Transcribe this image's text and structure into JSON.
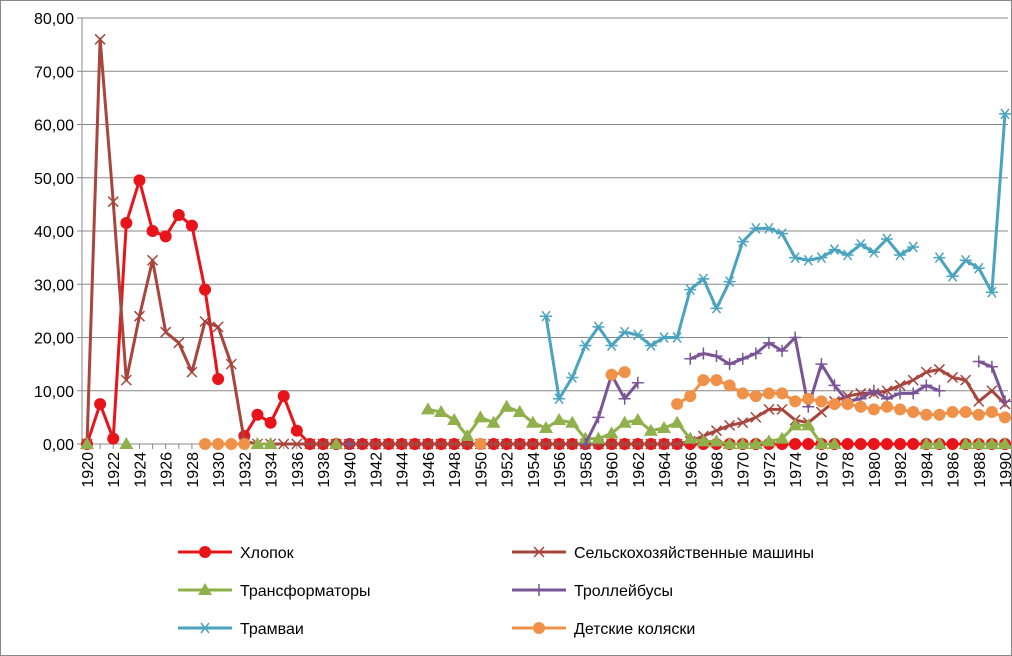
{
  "chart_data": {
    "type": "line",
    "categories": [
      "1920",
      null,
      "1922",
      null,
      "1924",
      null,
      "1926",
      null,
      "1928",
      null,
      "1930",
      null,
      "1932",
      null,
      "1934",
      null,
      "1936",
      null,
      "1938",
      null,
      "1940",
      null,
      "1942",
      null,
      "1944",
      null,
      "1946",
      null,
      "1948",
      null,
      "1950",
      null,
      "1952",
      null,
      "1954",
      null,
      "1956",
      null,
      "1958",
      null,
      "1960",
      null,
      "1962",
      null,
      "1964",
      null,
      "1966",
      null,
      "1968",
      null,
      "1970",
      null,
      "1972",
      null,
      "1974",
      null,
      "1976",
      null,
      "1978",
      null,
      "1980",
      null,
      "1982",
      null,
      "1984",
      null,
      "1986",
      null,
      "1988",
      null,
      "1990"
    ],
    "ylim": [
      0,
      80
    ],
    "yticks": [
      {
        "value": 0,
        "label": "0,00"
      },
      {
        "value": 10,
        "label": "10,00"
      },
      {
        "value": 20,
        "label": "20,00"
      },
      {
        "value": 30,
        "label": "30,00"
      },
      {
        "value": 40,
        "label": "40,00"
      },
      {
        "value": 50,
        "label": "50,00"
      },
      {
        "value": 60,
        "label": "60,00"
      },
      {
        "value": 70,
        "label": "70,00"
      },
      {
        "value": 80,
        "label": "80,00"
      }
    ],
    "grid": true,
    "legend": "bottom",
    "series": [
      {
        "name": "Хлопок",
        "color": "#e8141a",
        "marker": "circle",
        "values": [
          0,
          7.5,
          1,
          41.5,
          49.5,
          40,
          39,
          43,
          41,
          29,
          12.2,
          null,
          1.5,
          5.5,
          4,
          9,
          2.5,
          0,
          0,
          0,
          0,
          0,
          0,
          0,
          0,
          0,
          0,
          0,
          0,
          0,
          0,
          0,
          0,
          0,
          0,
          0,
          0,
          0,
          0,
          0,
          0,
          0,
          0,
          0,
          0,
          0,
          0,
          0,
          0,
          0,
          0,
          0,
          0,
          0,
          0,
          0,
          0,
          0,
          0,
          0,
          0,
          0,
          0,
          0,
          0,
          0,
          0,
          0,
          0,
          0,
          0
        ]
      },
      {
        "name": "Сельскохозяйственные машины",
        "color": "#a8453d",
        "marker": "x",
        "values": [
          0,
          76,
          45.5,
          12,
          24,
          34.5,
          21,
          19,
          13.5,
          23,
          22,
          15,
          0.5,
          0,
          0,
          0,
          0,
          0,
          0,
          0,
          0,
          0,
          0,
          0,
          0,
          0,
          0,
          0,
          0,
          0,
          0,
          0,
          0,
          0,
          0,
          0,
          0,
          0,
          0,
          0,
          0,
          0,
          0,
          0,
          0,
          0,
          0.5,
          1.5,
          2.5,
          3.5,
          4,
          5,
          6.5,
          6.5,
          4.5,
          4,
          6,
          8,
          9,
          9.5,
          9.5,
          10,
          11,
          12,
          13.5,
          14,
          12.5,
          12,
          8,
          10,
          7.5
        ]
      },
      {
        "name": "Трансформаторы",
        "color": "#8fb04a",
        "marker": "triangle",
        "values": [
          0,
          null,
          null,
          0,
          null,
          null,
          null,
          null,
          null,
          null,
          null,
          null,
          null,
          0,
          0,
          null,
          null,
          null,
          null,
          0,
          null,
          null,
          null,
          null,
          null,
          null,
          6.5,
          6,
          4.5,
          1.5,
          5,
          4,
          7,
          6,
          4,
          3,
          4.5,
          4,
          1,
          1,
          2,
          4,
          4.5,
          2.5,
          3,
          4,
          1,
          0.5,
          0.5,
          0,
          0,
          0,
          0.5,
          1,
          3.5,
          3.5,
          0,
          0,
          null,
          null,
          null,
          null,
          null,
          null,
          0,
          0,
          null,
          0,
          0,
          0,
          0
        ]
      },
      {
        "name": "Троллейбусы",
        "color": "#7a5595",
        "marker": "plus",
        "values": [
          null,
          null,
          null,
          null,
          null,
          null,
          null,
          null,
          null,
          null,
          null,
          null,
          null,
          null,
          null,
          null,
          null,
          null,
          null,
          null,
          0,
          null,
          null,
          null,
          null,
          null,
          null,
          null,
          null,
          null,
          null,
          null,
          null,
          null,
          null,
          null,
          null,
          null,
          0,
          5,
          13,
          8.5,
          11.5,
          null,
          null,
          null,
          16,
          17,
          16.5,
          15,
          16,
          17,
          19,
          17.5,
          20,
          7,
          15,
          11,
          8,
          8.5,
          10,
          8.5,
          9.5,
          9.5,
          11,
          10,
          null,
          null,
          15.5,
          14.5,
          8
        ]
      },
      {
        "name": "Трамваи",
        "color": "#4aa3bf",
        "marker": "star",
        "values": [
          null,
          null,
          null,
          null,
          null,
          null,
          null,
          null,
          null,
          null,
          null,
          null,
          null,
          null,
          null,
          null,
          null,
          null,
          null,
          null,
          null,
          null,
          null,
          null,
          null,
          null,
          null,
          null,
          null,
          null,
          null,
          null,
          null,
          null,
          null,
          24,
          8.5,
          12.5,
          18.5,
          22,
          18.5,
          21,
          20.5,
          18.5,
          20,
          20,
          29,
          31,
          25.5,
          30.5,
          38,
          40.5,
          40.5,
          39.5,
          35,
          34.5,
          35,
          36.5,
          35.5,
          37.5,
          36,
          38.5,
          35.5,
          37,
          null,
          35,
          31.5,
          34.5,
          33,
          28.5,
          62
        ]
      },
      {
        "name": "Детские коляски",
        "color": "#f0914a",
        "marker": "circle",
        "values": [
          null,
          null,
          null,
          null,
          null,
          null,
          null,
          null,
          null,
          0,
          0,
          0,
          0,
          null,
          null,
          null,
          null,
          null,
          null,
          null,
          null,
          null,
          null,
          null,
          null,
          null,
          null,
          null,
          null,
          null,
          0,
          null,
          null,
          null,
          null,
          null,
          null,
          null,
          null,
          null,
          13,
          13.5,
          null,
          null,
          null,
          7.5,
          9,
          12,
          12,
          11,
          9.5,
          9,
          9.5,
          9.5,
          8,
          8.5,
          8,
          7.5,
          7.5,
          7,
          6.5,
          7,
          6.5,
          6,
          5.5,
          5.5,
          6,
          6,
          5.5,
          6,
          5
        ]
      }
    ]
  }
}
